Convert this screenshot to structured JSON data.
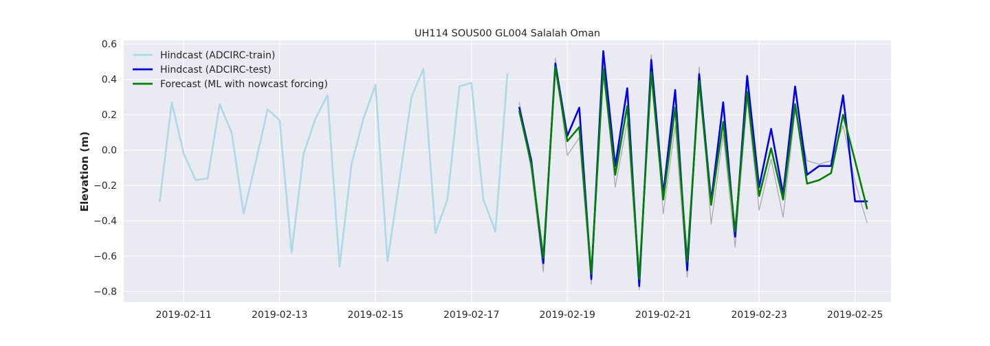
{
  "chart_data": {
    "type": "line",
    "title": "UH114 SOUS00 GL004 Salalah Oman",
    "xlabel": "",
    "ylabel": "Elevation (m)",
    "x_axis": {
      "type": "date",
      "range": [
        "2019-02-09T18:00",
        "2019-02-25T18:00"
      ],
      "ticks": [
        "2019-02-11",
        "2019-02-13",
        "2019-02-15",
        "2019-02-17",
        "2019-02-19",
        "2019-02-21",
        "2019-02-23",
        "2019-02-25"
      ]
    },
    "ylim": [
      -0.86,
      0.62
    ],
    "yticks": [
      -0.8,
      -0.6,
      -0.4,
      -0.2,
      0.0,
      0.2,
      0.4,
      0.6
    ],
    "ytick_labels": [
      "−0.8",
      "−0.6",
      "−0.4",
      "−0.2",
      "0.0",
      "0.2",
      "0.4",
      "0.6"
    ],
    "grid": true,
    "legend_position": "top-left",
    "series": [
      {
        "name": "Hindcast (ADCIRC-train)",
        "color": "#add8e6",
        "in_legend": true,
        "x": [
          "2019-02-10T12:00",
          "2019-02-10T18:00",
          "2019-02-11T00:00",
          "2019-02-11T06:00",
          "2019-02-11T12:00",
          "2019-02-11T18:00",
          "2019-02-12T00:00",
          "2019-02-12T06:00",
          "2019-02-12T12:00",
          "2019-02-12T18:00",
          "2019-02-13T00:00",
          "2019-02-13T06:00",
          "2019-02-13T12:00",
          "2019-02-13T18:00",
          "2019-02-14T00:00",
          "2019-02-14T06:00",
          "2019-02-14T12:00",
          "2019-02-14T18:00",
          "2019-02-15T00:00",
          "2019-02-15T06:00",
          "2019-02-15T12:00",
          "2019-02-15T18:00",
          "2019-02-16T00:00",
          "2019-02-16T06:00",
          "2019-02-16T12:00",
          "2019-02-16T18:00",
          "2019-02-17T00:00",
          "2019-02-17T06:00",
          "2019-02-17T12:00",
          "2019-02-17T18:00"
        ],
        "values": [
          -0.29,
          0.27,
          -0.02,
          -0.17,
          -0.16,
          0.26,
          0.1,
          -0.36,
          -0.07,
          0.23,
          0.17,
          -0.58,
          -0.02,
          0.18,
          0.31,
          -0.66,
          -0.08,
          0.18,
          0.37,
          -0.63,
          -0.17,
          0.3,
          0.46,
          -0.47,
          -0.28,
          0.36,
          0.38,
          -0.28,
          -0.46,
          0.43
        ]
      },
      {
        "name": "",
        "color": "#aaaaaa",
        "in_legend": false,
        "x": [
          "2019-02-18T00:00",
          "2019-02-18T06:00",
          "2019-02-18T12:00",
          "2019-02-18T18:00",
          "2019-02-19T00:00",
          "2019-02-19T06:00",
          "2019-02-19T12:00",
          "2019-02-19T18:00",
          "2019-02-20T00:00",
          "2019-02-20T06:00",
          "2019-02-20T12:00",
          "2019-02-20T18:00",
          "2019-02-21T00:00",
          "2019-02-21T06:00",
          "2019-02-21T12:00",
          "2019-02-21T18:00",
          "2019-02-22T00:00",
          "2019-02-22T06:00",
          "2019-02-22T12:00",
          "2019-02-22T18:00",
          "2019-02-23T00:00",
          "2019-02-23T06:00",
          "2019-02-23T12:00",
          "2019-02-23T18:00",
          "2019-02-24T00:00",
          "2019-02-24T06:00",
          "2019-02-24T12:00",
          "2019-02-24T18:00",
          "2019-02-25T00:00",
          "2019-02-25T06:00"
        ],
        "values": [
          0.27,
          -0.12,
          -0.69,
          0.52,
          -0.03,
          0.07,
          -0.76,
          0.47,
          -0.21,
          0.16,
          -0.79,
          0.54,
          -0.36,
          0.14,
          -0.72,
          0.47,
          -0.42,
          0.09,
          -0.55,
          0.29,
          -0.34,
          -0.05,
          -0.38,
          0.22,
          -0.06,
          -0.08,
          -0.06,
          0.14,
          -0.18,
          -0.41
        ]
      },
      {
        "name": "Hindcast (ADCIRC-test)",
        "color": "#0000ee",
        "in_legend": true,
        "x": [
          "2019-02-18T00:00",
          "2019-02-18T06:00",
          "2019-02-18T12:00",
          "2019-02-18T18:00",
          "2019-02-19T00:00",
          "2019-02-19T06:00",
          "2019-02-19T12:00",
          "2019-02-19T18:00",
          "2019-02-20T00:00",
          "2019-02-20T06:00",
          "2019-02-20T12:00",
          "2019-02-20T18:00",
          "2019-02-21T00:00",
          "2019-02-21T06:00",
          "2019-02-21T12:00",
          "2019-02-21T18:00",
          "2019-02-22T00:00",
          "2019-02-22T06:00",
          "2019-02-22T12:00",
          "2019-02-22T18:00",
          "2019-02-23T00:00",
          "2019-02-23T06:00",
          "2019-02-23T12:00",
          "2019-02-23T18:00",
          "2019-02-24T00:00",
          "2019-02-24T06:00",
          "2019-02-24T12:00",
          "2019-02-24T18:00",
          "2019-02-25T00:00",
          "2019-02-25T06:00"
        ],
        "values": [
          0.24,
          -0.06,
          -0.64,
          0.49,
          0.08,
          0.24,
          -0.73,
          0.56,
          -0.09,
          0.35,
          -0.77,
          0.51,
          -0.25,
          0.34,
          -0.68,
          0.43,
          -0.29,
          0.27,
          -0.49,
          0.42,
          -0.21,
          0.12,
          -0.25,
          0.36,
          -0.14,
          -0.09,
          -0.09,
          0.31,
          -0.29,
          -0.29
        ]
      },
      {
        "name": "Forecast (ML with nowcast forcing)",
        "color": "#008000",
        "in_legend": true,
        "x": [
          "2019-02-18T00:00",
          "2019-02-18T06:00",
          "2019-02-18T12:00",
          "2019-02-18T18:00",
          "2019-02-19T00:00",
          "2019-02-19T06:00",
          "2019-02-19T12:00",
          "2019-02-19T18:00",
          "2019-02-20T00:00",
          "2019-02-20T06:00",
          "2019-02-20T12:00",
          "2019-02-20T18:00",
          "2019-02-21T00:00",
          "2019-02-21T06:00",
          "2019-02-21T12:00",
          "2019-02-21T18:00",
          "2019-02-22T00:00",
          "2019-02-22T06:00",
          "2019-02-22T12:00",
          "2019-02-22T18:00",
          "2019-02-23T00:00",
          "2019-02-23T06:00",
          "2019-02-23T12:00",
          "2019-02-23T18:00",
          "2019-02-24T00:00",
          "2019-02-24T06:00",
          "2019-02-24T12:00",
          "2019-02-24T18:00",
          "2019-02-25T00:00",
          "2019-02-25T06:00"
        ],
        "values": [
          0.22,
          -0.08,
          -0.61,
          0.47,
          0.05,
          0.13,
          -0.7,
          0.46,
          -0.14,
          0.25,
          -0.73,
          0.44,
          -0.28,
          0.24,
          -0.63,
          0.39,
          -0.31,
          0.16,
          -0.46,
          0.33,
          -0.26,
          0.01,
          -0.28,
          0.26,
          -0.19,
          -0.17,
          -0.13,
          0.2,
          -0.06,
          -0.33
        ]
      }
    ]
  }
}
